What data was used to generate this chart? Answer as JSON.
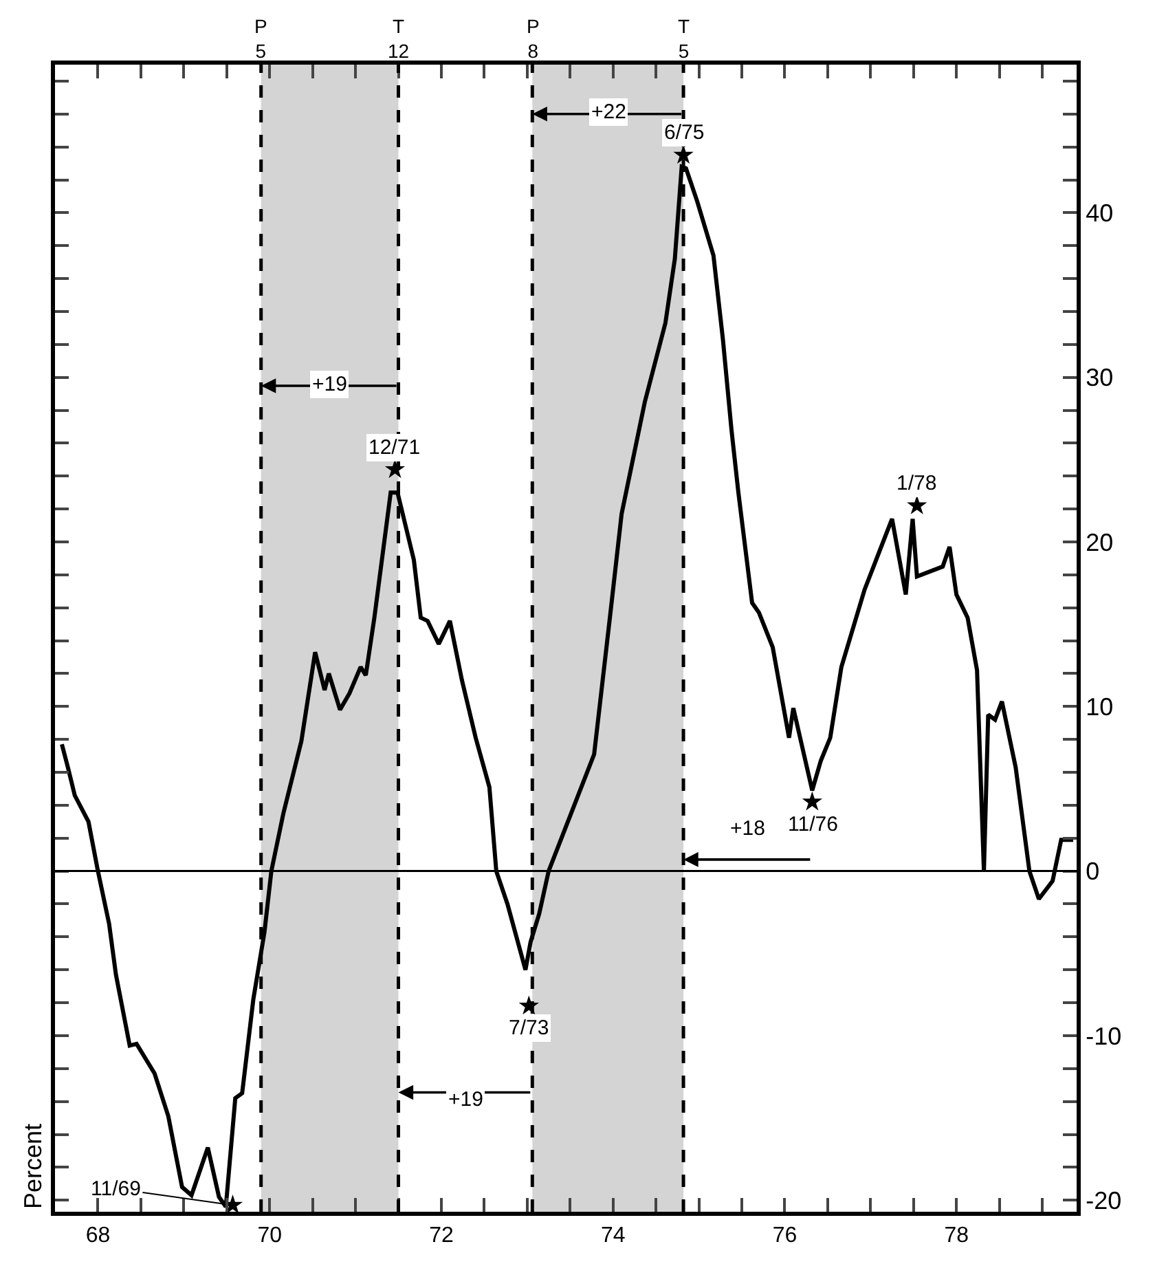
{
  "chart_data": {
    "type": "line",
    "ylabel": "Percent",
    "xlim": [
      67.5,
      79.4
    ],
    "ylim": [
      -20.7,
      49
    ],
    "xticks": [
      68,
      {
        "value": 68.5,
        "label": null
      },
      {
        "value": 69,
        "label": null
      },
      {
        "value": 69.5,
        "label": null
      },
      70,
      {
        "value": 70.5,
        "label": null
      },
      {
        "value": 71,
        "label": null
      },
      {
        "value": 71.5,
        "label": null
      },
      72,
      {
        "value": 72.5,
        "label": null
      },
      {
        "value": 73,
        "label": null
      },
      {
        "value": 73.5,
        "label": null
      },
      74,
      {
        "value": 74.5,
        "label": null
      },
      {
        "value": 75,
        "label": null
      },
      {
        "value": 75.5,
        "label": null
      },
      76,
      {
        "value": 76.5,
        "label": null
      },
      {
        "value": 77,
        "label": null
      },
      {
        "value": 77.5,
        "label": null
      },
      78,
      {
        "value": 78.5,
        "label": null
      },
      {
        "value": 79,
        "label": null
      }
    ],
    "yticks": [
      -20,
      {
        "value": -18,
        "label": null
      },
      {
        "value": -16,
        "label": null
      },
      {
        "value": -14,
        "label": null
      },
      {
        "value": -12,
        "label": null
      },
      -10,
      {
        "value": -8,
        "label": null
      },
      {
        "value": -6,
        "label": null
      },
      {
        "value": -4,
        "label": null
      },
      {
        "value": -2,
        "label": null
      },
      0,
      {
        "value": 2,
        "label": null
      },
      {
        "value": 4,
        "label": null
      },
      {
        "value": 6,
        "label": null
      },
      {
        "value": 8,
        "label": null
      },
      10,
      {
        "value": 12,
        "label": null
      },
      {
        "value": 14,
        "label": null
      },
      {
        "value": 16,
        "label": null
      },
      {
        "value": 18,
        "label": null
      },
      20,
      {
        "value": 22,
        "label": null
      },
      {
        "value": 24,
        "label": null
      },
      {
        "value": 26,
        "label": null
      },
      {
        "value": 28,
        "label": null
      },
      30,
      {
        "value": 32,
        "label": null
      },
      {
        "value": 34,
        "label": null
      },
      {
        "value": 36,
        "label": null
      },
      {
        "value": 38,
        "label": null
      },
      40,
      {
        "value": 42,
        "label": null
      },
      {
        "value": 44,
        "label": null
      },
      {
        "value": 46,
        "label": null
      },
      {
        "value": 48,
        "label": null
      }
    ],
    "grid": false,
    "series": [
      {
        "color": "#000000",
        "marker": "none",
        "line_style": "solid",
        "x": [
          67.58,
          67.65,
          67.73,
          67.89,
          68.0,
          68.13,
          68.21,
          68.37,
          68.45,
          68.66,
          68.82,
          68.98,
          69.09,
          69.28,
          69.41,
          69.49,
          69.6,
          69.68,
          69.81,
          69.94,
          70.02,
          70.16,
          70.37,
          70.53,
          70.64,
          70.69,
          70.82,
          70.93,
          71.06,
          71.12,
          71.22,
          71.41,
          71.49,
          71.68,
          71.76,
          71.84,
          71.97,
          72.1,
          72.24,
          72.4,
          72.56,
          72.64,
          72.77,
          72.98,
          73.04,
          73.14,
          73.25,
          73.78,
          73.97,
          74.1,
          74.37,
          74.61,
          74.72,
          74.8,
          74.85,
          74.98,
          75.17,
          75.28,
          75.38,
          75.46,
          75.62,
          75.7,
          75.86,
          76.05,
          76.1,
          76.32,
          76.42,
          76.53,
          76.66,
          76.93,
          77.25,
          77.41,
          77.49,
          77.54,
          77.84,
          77.92,
          78.0,
          78.13,
          78.24,
          78.32,
          78.37,
          78.45,
          78.53,
          78.69,
          78.85,
          78.96,
          79.12,
          79.22,
          79.36
        ],
        "values": [
          7.7,
          6.3,
          4.6,
          3.0,
          0,
          -3.2,
          -6.3,
          -10.6,
          -10.5,
          -12.3,
          -14.9,
          -19.2,
          -19.7,
          -16.8,
          -19.8,
          -20.4,
          -13.8,
          -13.5,
          -7.8,
          -3.7,
          0,
          3.5,
          7.9,
          13.3,
          11.0,
          12.0,
          9.8,
          10.8,
          12.4,
          11.9,
          15.4,
          23.0,
          23.0,
          18.9,
          15.4,
          15.2,
          13.8,
          15.2,
          11.6,
          8.1,
          5.1,
          0,
          -2.0,
          -6.0,
          -4.3,
          -2.6,
          0,
          7.1,
          15.7,
          21.7,
          28.5,
          33.3,
          37.2,
          42.8,
          42.7,
          40.7,
          37.4,
          32.3,
          26.8,
          23.0,
          16.3,
          15.7,
          13.6,
          8.1,
          9.9,
          4.9,
          6.7,
          8.1,
          12.4,
          17.1,
          21.4,
          16.8,
          21.4,
          17.9,
          18.5,
          19.7,
          16.8,
          15.4,
          12.2,
          0,
          9.5,
          9.2,
          10.3,
          6.3,
          0,
          -1.7,
          -0.6,
          1.9,
          1.9
        ]
      },
      {
        "type": "scatter",
        "color": "#000000",
        "marker": "star",
        "x": [
          69.57,
          71.46,
          73.02,
          74.82,
          76.32,
          77.54
        ],
        "values": [
          -20.3,
          24.4,
          -8.2,
          43.5,
          4.2,
          22.2
        ]
      }
    ],
    "ref_lines": [
      {
        "axis": "y",
        "value": 0,
        "color": "#000000",
        "line_style": "solid"
      },
      {
        "axis": "x",
        "value": 69.9,
        "label": "P\n5",
        "color": "#000000",
        "line_style": "dashed"
      },
      {
        "axis": "x",
        "value": 71.5,
        "label": "T\n12",
        "color": "#000000",
        "line_style": "dashed"
      },
      {
        "axis": "x",
        "value": 73.06,
        "label": "P\n8",
        "color": "#000000",
        "line_style": "dashed"
      },
      {
        "axis": "x",
        "value": 74.82,
        "label": "T\n5",
        "color": "#000000",
        "line_style": "dashed"
      }
    ],
    "bands": [
      {
        "axis": "x",
        "from": 69.9,
        "to": 71.5,
        "color": "#d4d4d4"
      },
      {
        "axis": "x",
        "from": 73.06,
        "to": 74.82,
        "color": "#d4d4d4"
      }
    ],
    "annotations": [
      {
        "text": "11/69",
        "x": 69.57,
        "y": -20.3
      },
      {
        "text": "12/71",
        "x": 71.46,
        "y": 24.4
      },
      {
        "text": "7/73",
        "x": 73.02,
        "y": -8.2
      },
      {
        "text": "6/75",
        "x": 74.82,
        "y": 43.5
      },
      {
        "text": "11/76",
        "x": 76.32,
        "y": 4.2
      },
      {
        "text": "1/78",
        "x": 77.54,
        "y": 22.2
      },
      "+19",
      "+22",
      "+19",
      "+18"
    ]
  }
}
